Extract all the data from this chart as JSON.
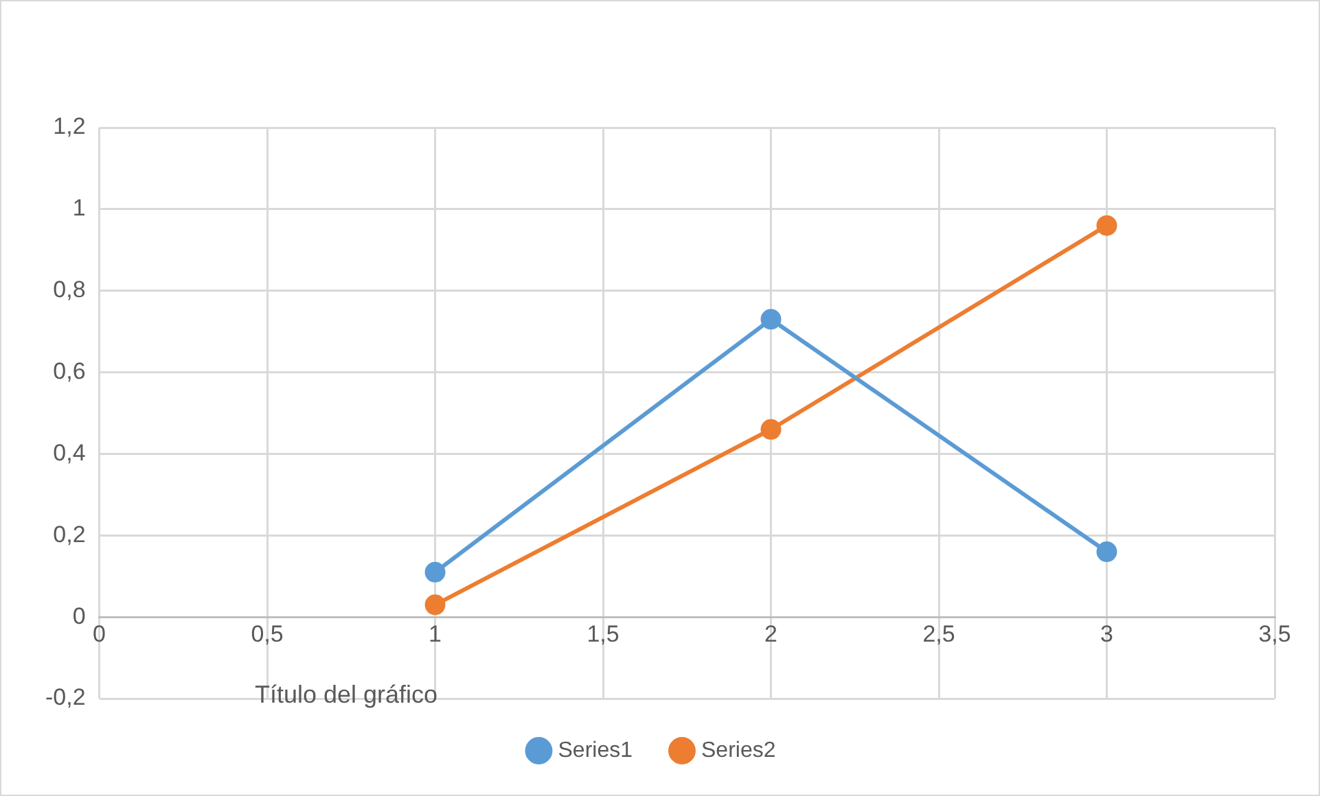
{
  "chart_data": {
    "type": "line",
    "title": "Título del gráfico",
    "series": [
      {
        "name": "Series1",
        "color": "#5b9bd5",
        "x": [
          1,
          2,
          3
        ],
        "values": [
          0.11,
          0.73,
          0.16
        ]
      },
      {
        "name": "Series2",
        "color": "#ed7d31",
        "x": [
          1,
          2,
          3
        ],
        "values": [
          0.03,
          0.46,
          0.96
        ]
      }
    ],
    "xlim": [
      0,
      3.5
    ],
    "xticks": [
      {
        "value": 0,
        "label": "0"
      },
      {
        "value": 0.5,
        "label": "0,5"
      },
      {
        "value": 1,
        "label": "1"
      },
      {
        "value": 1.5,
        "label": "1,5"
      },
      {
        "value": 2,
        "label": "2"
      },
      {
        "value": 2.5,
        "label": "2,5"
      },
      {
        "value": 3,
        "label": "3"
      },
      {
        "value": 3.5,
        "label": "3,5"
      }
    ],
    "ylim": [
      -0.2,
      1.2
    ],
    "yticks": [
      {
        "value": -0.2,
        "label": "-0,2"
      },
      {
        "value": 0,
        "label": "0"
      },
      {
        "value": 0.2,
        "label": "0,2"
      },
      {
        "value": 0.4,
        "label": "0,4"
      },
      {
        "value": 0.6,
        "label": "0,6"
      },
      {
        "value": 0.8,
        "label": "0,8"
      },
      {
        "value": 1,
        "label": "1"
      },
      {
        "value": 1.2,
        "label": "1,2"
      }
    ],
    "grid": true,
    "legend": "bottom",
    "marker": "circle",
    "line_style": "solid"
  }
}
